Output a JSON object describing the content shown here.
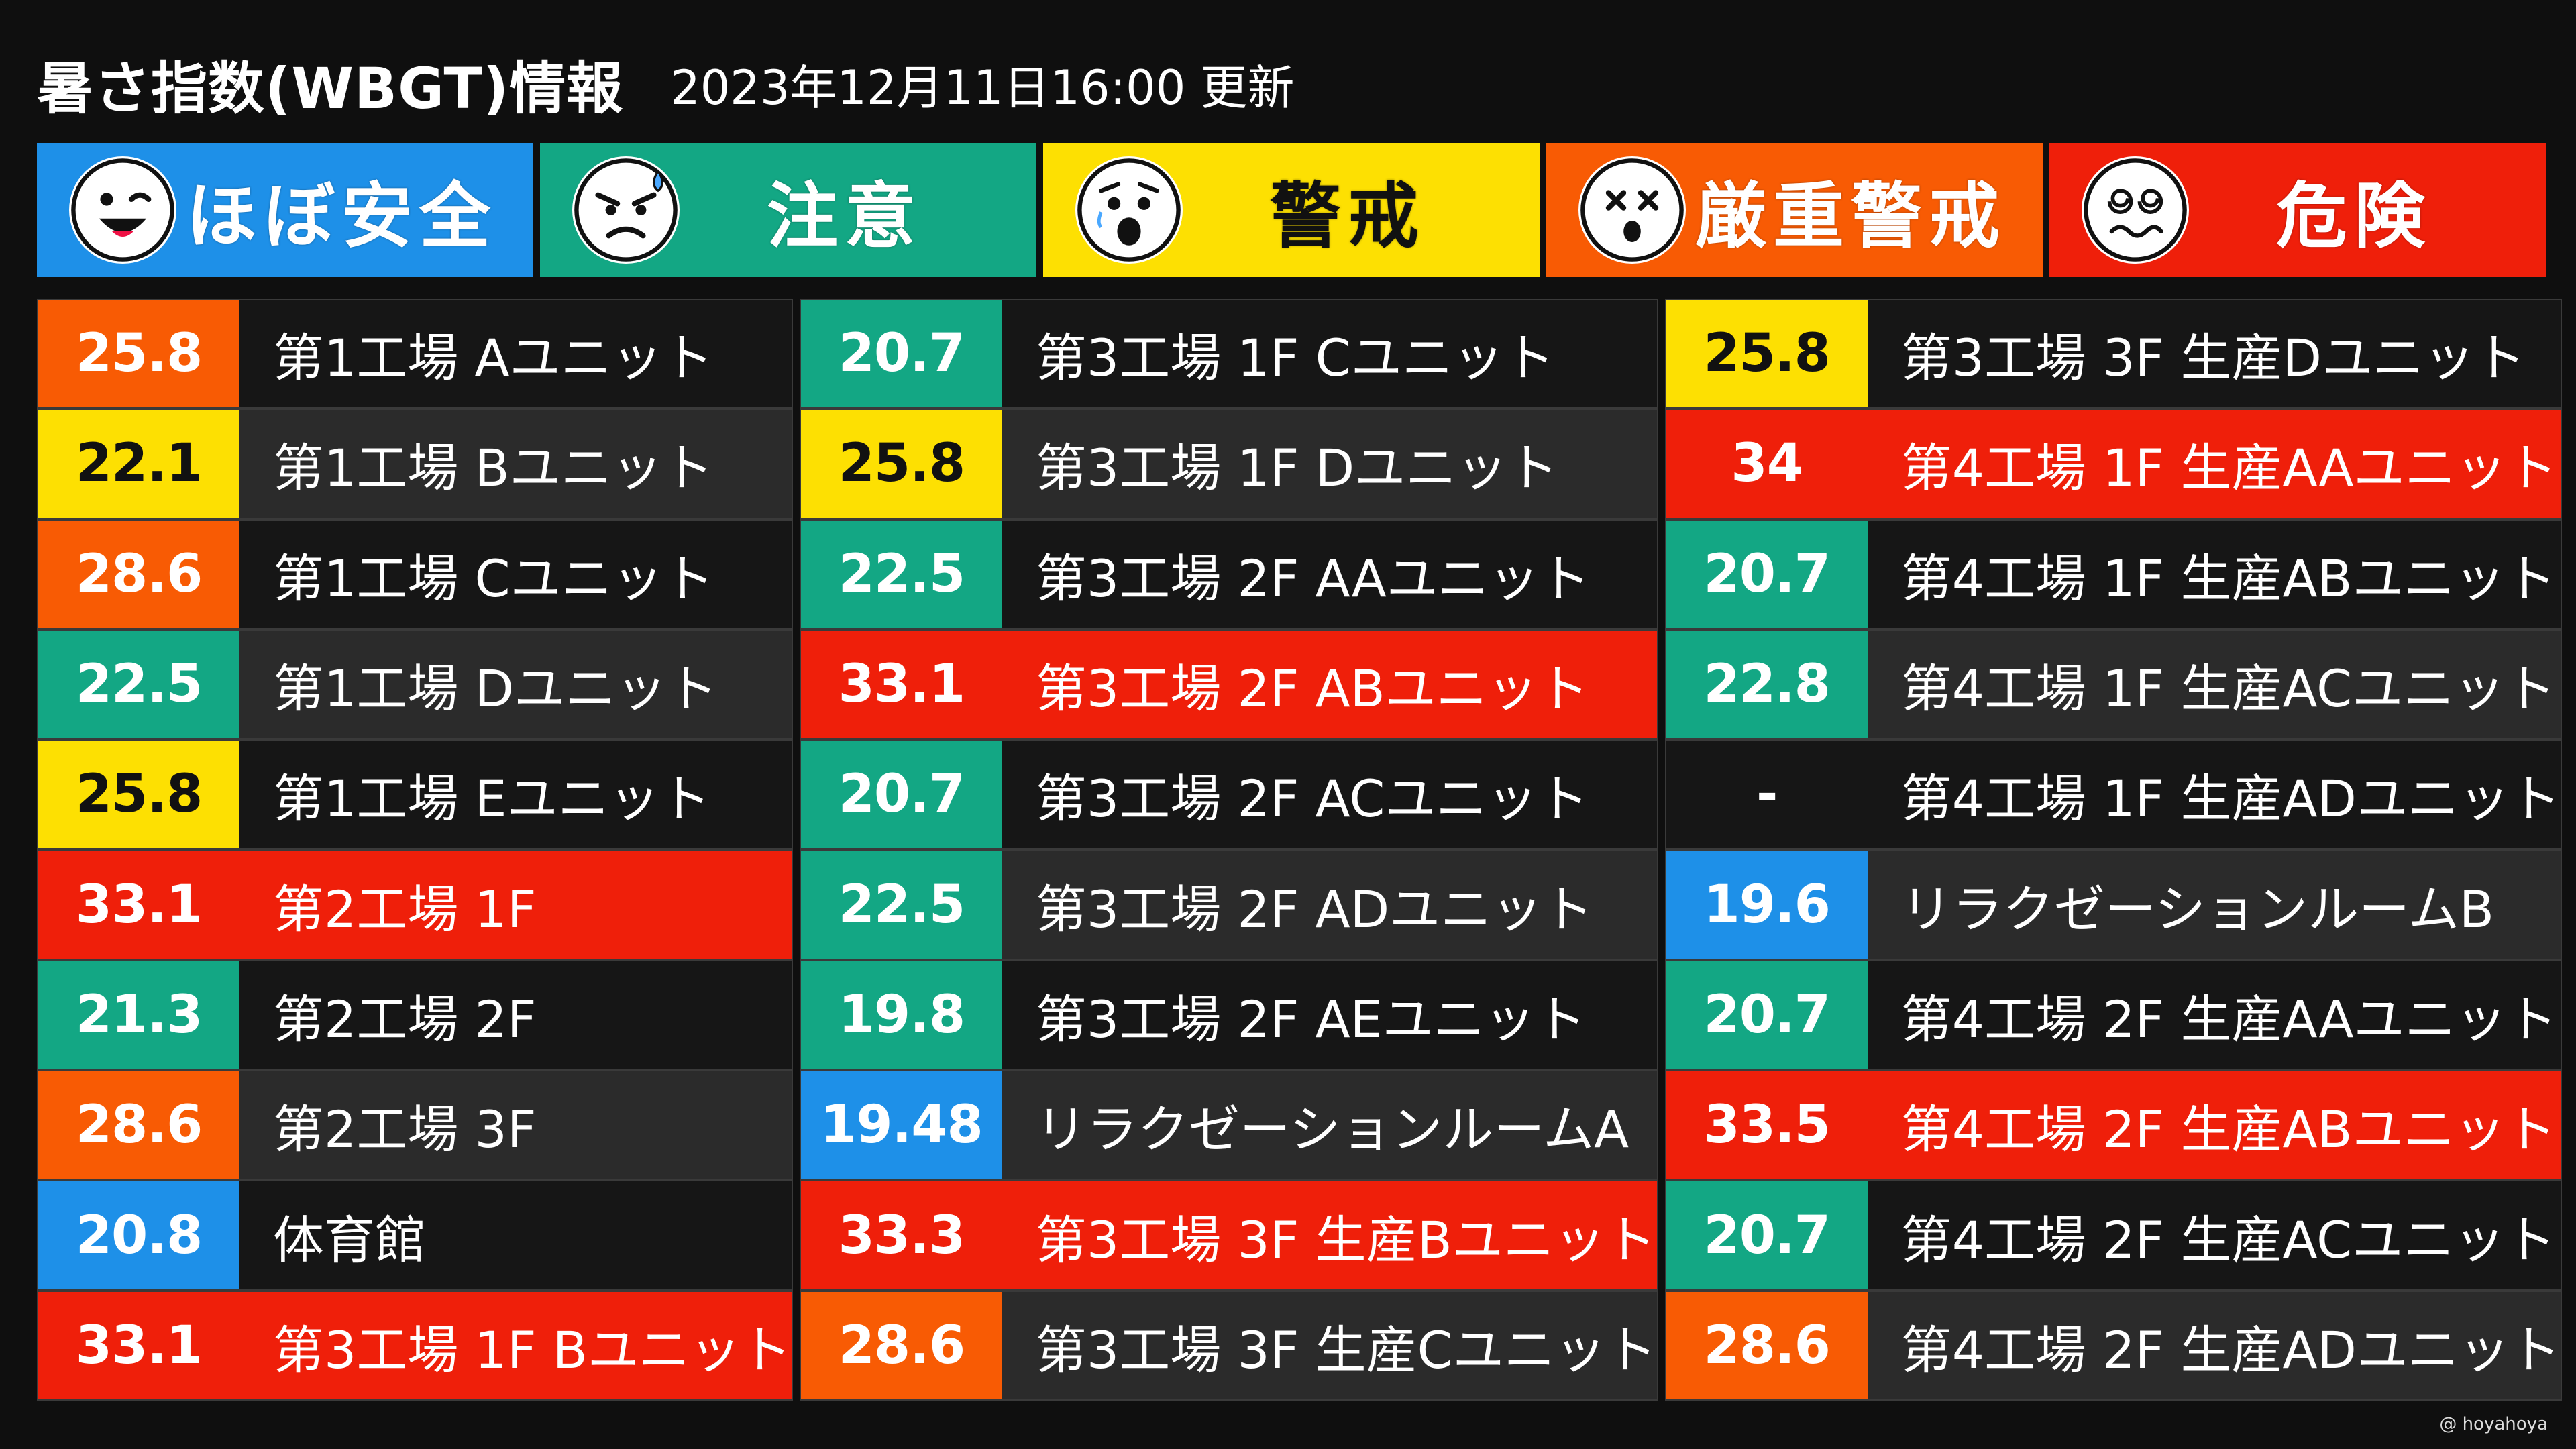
{
  "header": {
    "title": "暑さ指数(WBGT)情報",
    "updated": "2023年12月11日16:00 更新"
  },
  "levels": [
    {
      "key": "safe",
      "label": "ほぼ安全",
      "color": "#1e90e8",
      "text_color": "#ffffff",
      "icon": "winking-face-icon"
    },
    {
      "key": "caution",
      "label": "注意",
      "color": "#13a784",
      "text_color": "#ffffff",
      "icon": "sweating-face-icon"
    },
    {
      "key": "warning",
      "label": "警戒",
      "color": "#fde002",
      "text_color": "#111111",
      "icon": "anxious-face-icon"
    },
    {
      "key": "severe",
      "label": "厳重警戒",
      "color": "#f85b04",
      "text_color": "#ffffff",
      "icon": "dizzy-face-icon"
    },
    {
      "key": "danger",
      "label": "危険",
      "color": "#ef1f0a",
      "text_color": "#ffffff",
      "icon": "woozy-face-icon"
    }
  ],
  "columns": [
    [
      {
        "value": "25.8",
        "name": "第1工場 Aユニット",
        "level": "severe"
      },
      {
        "value": "22.1",
        "name": "第1工場 Bユニット",
        "level": "warning"
      },
      {
        "value": "28.6",
        "name": "第1工場 Cユニット",
        "level": "severe"
      },
      {
        "value": "22.5",
        "name": "第1工場 Dユニット",
        "level": "caution"
      },
      {
        "value": "25.8",
        "name": "第1工場 Eユニット",
        "level": "warning"
      },
      {
        "value": "33.1",
        "name": "第2工場 1F",
        "level": "danger"
      },
      {
        "value": "21.3",
        "name": "第2工場 2F",
        "level": "caution"
      },
      {
        "value": "28.6",
        "name": "第2工場 3F",
        "level": "severe"
      },
      {
        "value": "20.8",
        "name": "体育館",
        "level": "safe"
      },
      {
        "value": "33.1",
        "name": "第3工場 1F Bユニット",
        "level": "danger"
      }
    ],
    [
      {
        "value": "20.7",
        "name": "第3工場 1F Cユニット",
        "level": "caution"
      },
      {
        "value": "25.8",
        "name": "第3工場 1F Dユニット",
        "level": "warning"
      },
      {
        "value": "22.5",
        "name": "第3工場 2F AAユニット",
        "level": "caution"
      },
      {
        "value": "33.1",
        "name": "第3工場 2F ABユニット",
        "level": "danger"
      },
      {
        "value": "20.7",
        "name": "第3工場 2F ACユニット",
        "level": "caution"
      },
      {
        "value": "22.5",
        "name": "第3工場 2F ADユニット",
        "level": "caution"
      },
      {
        "value": "19.8",
        "name": "第3工場 2F AEユニット",
        "level": "caution"
      },
      {
        "value": "19.48",
        "name": "リラクゼーションルームA",
        "level": "safe"
      },
      {
        "value": "33.3",
        "name": "第3工場 3F 生産Bユニット",
        "level": "danger"
      },
      {
        "value": "28.6",
        "name": "第3工場 3F 生産Cユニット",
        "level": "severe"
      }
    ],
    [
      {
        "value": "25.8",
        "name": "第3工場 3F 生産Dユニット",
        "level": "warning"
      },
      {
        "value": "34",
        "name": "第4工場 1F 生産AAユニット",
        "level": "danger"
      },
      {
        "value": "20.7",
        "name": "第4工場 1F 生産ABユニット",
        "level": "caution"
      },
      {
        "value": "22.8",
        "name": "第4工場 1F 生産ACユニット",
        "level": "caution"
      },
      {
        "value": "-",
        "name": "第4工場 1F 生産ADユニット",
        "level": "none"
      },
      {
        "value": "19.6",
        "name": "リラクゼーションルームB",
        "level": "safe"
      },
      {
        "value": "20.7",
        "name": "第4工場 2F 生産AAユニット",
        "level": "caution"
      },
      {
        "value": "33.5",
        "name": "第4工場 2F 生産ABユニット",
        "level": "danger"
      },
      {
        "value": "20.7",
        "name": "第4工場 2F 生産ACユニット",
        "level": "caution"
      },
      {
        "value": "28.6",
        "name": "第4工場 2F 生産ADユニット",
        "level": "severe"
      }
    ]
  ],
  "footer": {
    "credit": "@ hoyahoya"
  }
}
